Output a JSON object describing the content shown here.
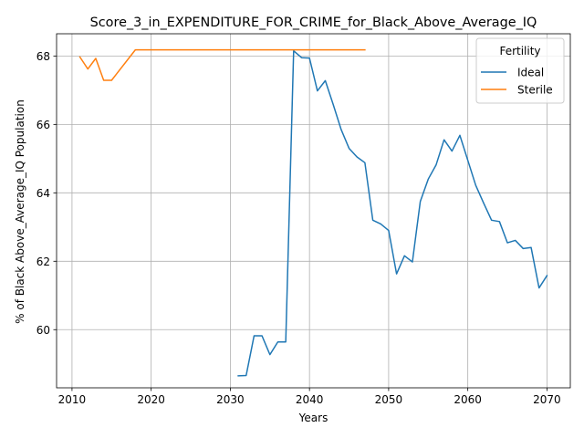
{
  "chart_data": {
    "type": "line",
    "title": "Score_3_in_EXPENDITURE_FOR_CRIME_for_Black_Above_Average_IQ",
    "xlabel": "Years",
    "ylabel": "% of Black Above_Average_IQ Population",
    "xlim": [
      2008.05,
      2072.95
    ],
    "ylim": [
      58.3,
      68.65
    ],
    "xticks": [
      2010,
      2020,
      2030,
      2040,
      2050,
      2060,
      2070
    ],
    "yticks": [
      60,
      62,
      64,
      66,
      68
    ],
    "grid": true,
    "legend": {
      "title": "Fertility",
      "position": "top-right"
    },
    "series": [
      {
        "name": "Ideal",
        "color": "#1f77b4",
        "x": [
          2031,
          2032,
          2033,
          2034,
          2035,
          2036,
          2037,
          2038,
          2039,
          2040,
          2041,
          2042,
          2043,
          2044,
          2045,
          2046,
          2047,
          2048,
          2049,
          2050,
          2051,
          2052,
          2053,
          2054,
          2055,
          2056,
          2057,
          2058,
          2059,
          2060,
          2061,
          2062,
          2063,
          2064,
          2065,
          2066,
          2067,
          2068,
          2069,
          2070
        ],
        "y": [
          58.65,
          58.66,
          59.82,
          59.82,
          59.27,
          59.64,
          59.64,
          68.15,
          67.95,
          67.94,
          66.98,
          67.28,
          66.58,
          65.85,
          65.3,
          65.05,
          64.88,
          63.2,
          63.09,
          62.9,
          61.63,
          62.16,
          61.98,
          63.75,
          64.4,
          64.82,
          65.55,
          65.22,
          65.68,
          64.95,
          64.22,
          63.7,
          63.2,
          63.16,
          62.54,
          62.61,
          62.37,
          62.4,
          61.22,
          61.58
        ]
      },
      {
        "name": "Sterile",
        "color": "#ff7f0e",
        "x": [
          2011,
          2012,
          2013,
          2014,
          2015,
          2018,
          2047
        ],
        "y": [
          67.97,
          67.62,
          67.93,
          67.29,
          67.29,
          68.18,
          68.18
        ]
      }
    ]
  }
}
